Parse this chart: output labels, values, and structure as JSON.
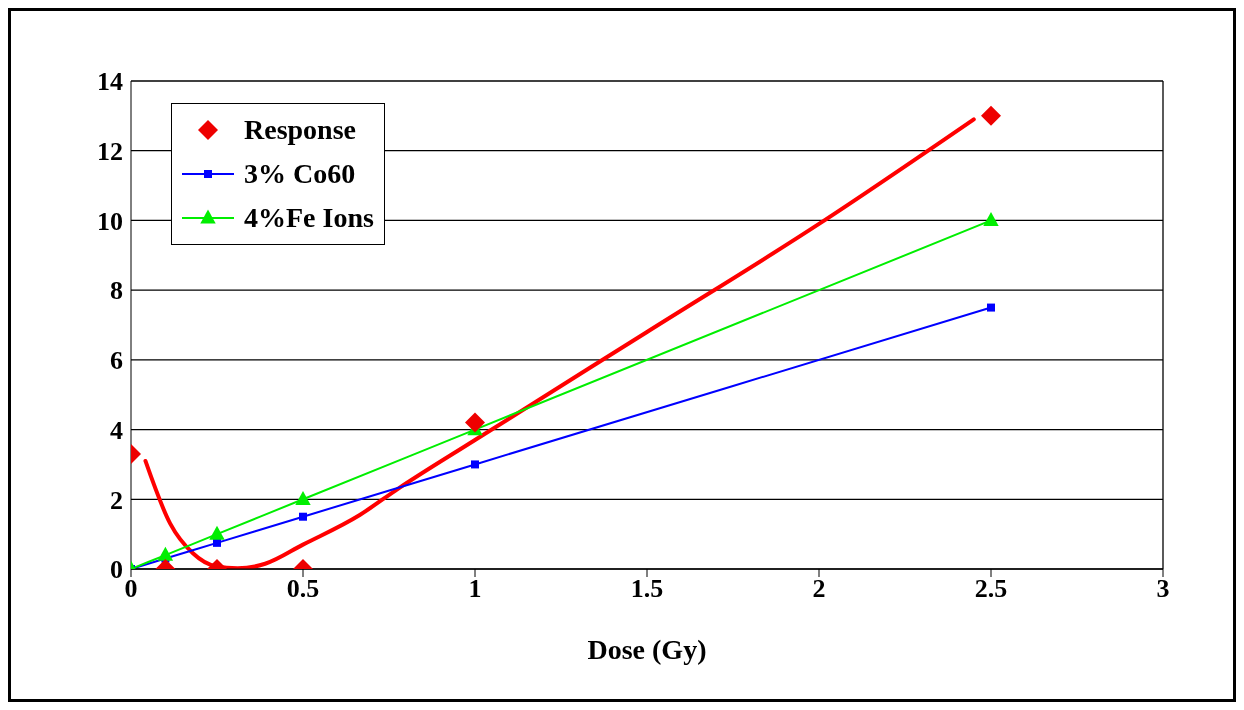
{
  "chart_data": {
    "type": "line",
    "xlabel": "Dose (Gy)",
    "xlim": [
      0,
      3
    ],
    "xticks": [
      0,
      0.5,
      1,
      1.5,
      2,
      2.5,
      3
    ],
    "ylim": [
      0,
      14
    ],
    "yticks": [
      0,
      2,
      4,
      6,
      8,
      10,
      12,
      14
    ],
    "grid": "y",
    "legend": "top left",
    "series": [
      {
        "type": "scatter",
        "name": "Response",
        "color": "#ee0000",
        "marker": "diamond",
        "x": [
          0,
          0.1,
          0.25,
          0.5,
          1,
          2.5
        ],
        "values": [
          3.3,
          0,
          0,
          0,
          4.2,
          13
        ]
      },
      {
        "color": "#ff0000",
        "marker": "none",
        "x": [
          0.042,
          0.114,
          0.18,
          0.246,
          0.31,
          0.39,
          0.5,
          0.665,
          0.776,
          1,
          1.5,
          2,
          2.45
        ],
        "values": [
          3.1,
          1.3,
          0.45,
          0.08,
          0.02,
          0.15,
          0.7,
          1.55,
          2.3,
          3.7,
          6.8,
          9.9,
          12.9
        ]
      },
      {
        "name": "3% Co60",
        "color": "#0000ff",
        "marker": "square",
        "x": [
          0,
          0.1,
          0.25,
          0.5,
          1,
          2.5
        ],
        "values": [
          0,
          0.3,
          0.75,
          1.5,
          3,
          7.5
        ]
      },
      {
        "name": "4%Fe Ions",
        "color": "#00ee00",
        "marker": "triangle",
        "x": [
          0,
          0.1,
          0.25,
          0.5,
          1,
          2.5
        ],
        "values": [
          0,
          0.4,
          1,
          2,
          4,
          10
        ]
      }
    ]
  }
}
